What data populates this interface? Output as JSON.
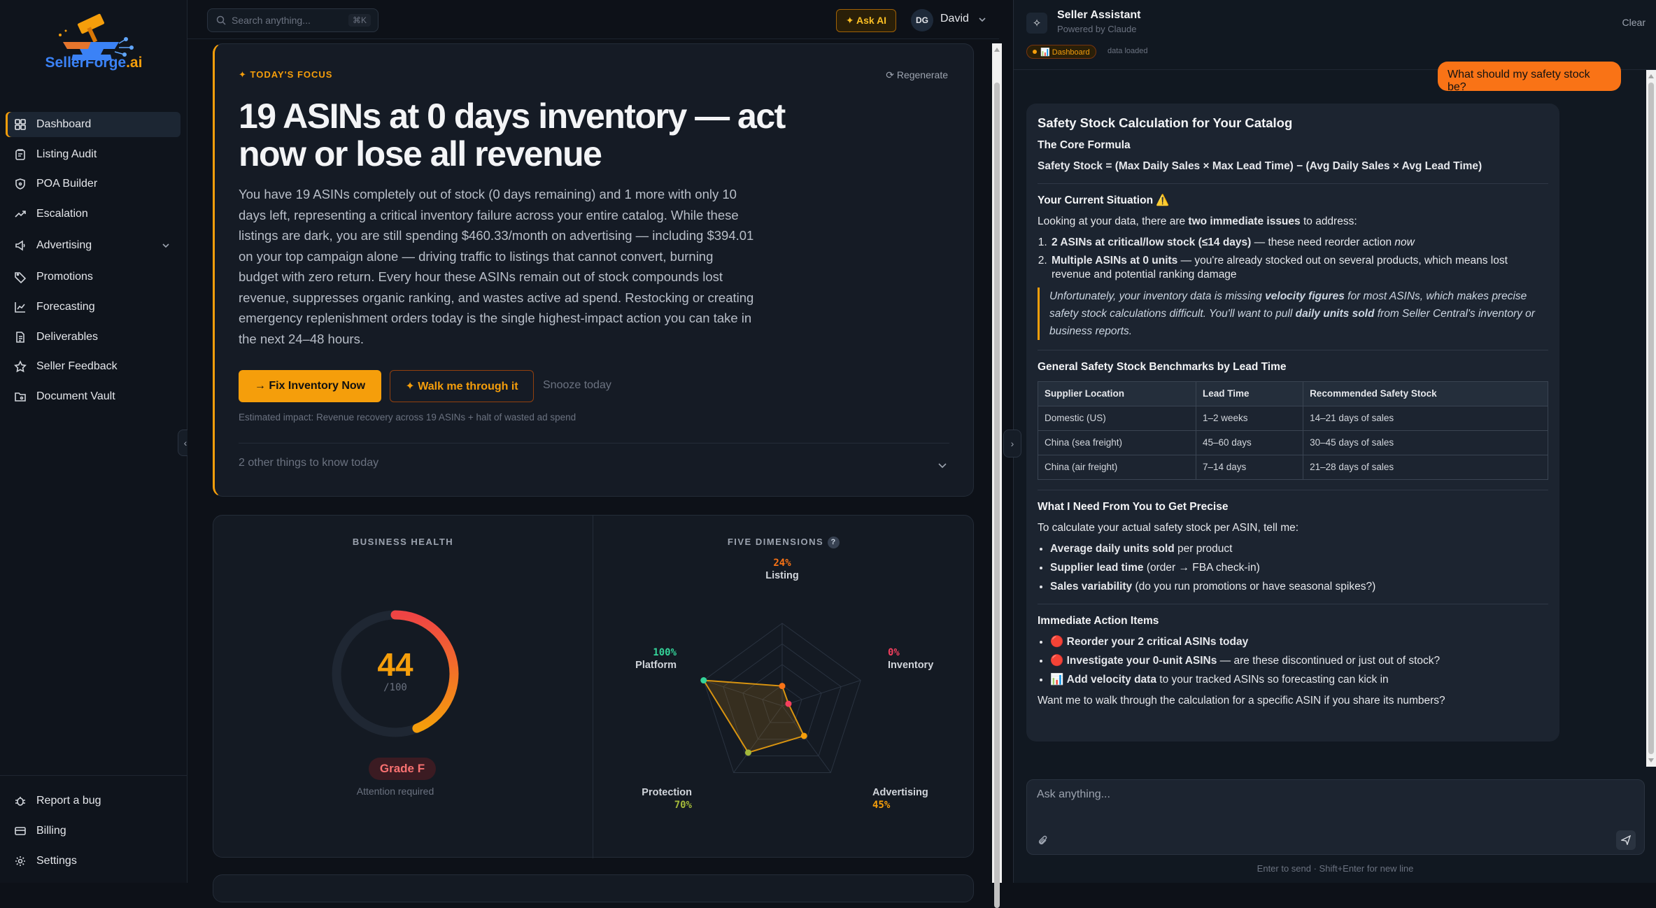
{
  "brand": {
    "name_primary": "SellerForge",
    "name_suffix": ".ai"
  },
  "sidebar": {
    "items": [
      {
        "label": "Dashboard",
        "icon": "dashboard-icon",
        "active": true
      },
      {
        "label": "Listing Audit",
        "icon": "clipboard-icon"
      },
      {
        "label": "POA Builder",
        "icon": "shield-icon"
      },
      {
        "label": "Escalation",
        "icon": "trending-up-icon"
      },
      {
        "label": "Advertising",
        "icon": "megaphone-icon",
        "expandable": true
      },
      {
        "label": "Promotions",
        "icon": "tag-icon"
      },
      {
        "label": "Forecasting",
        "icon": "line-chart-icon"
      },
      {
        "label": "Deliverables",
        "icon": "document-icon"
      },
      {
        "label": "Seller Feedback",
        "icon": "star-icon"
      },
      {
        "label": "Document Vault",
        "icon": "folder-icon"
      }
    ],
    "footer": [
      {
        "label": "Report a bug",
        "icon": "bug-icon"
      },
      {
        "label": "Billing",
        "icon": "credit-card-icon"
      },
      {
        "label": "Settings",
        "icon": "gear-icon"
      }
    ]
  },
  "topbar": {
    "search_placeholder": "Search anything...",
    "search_shortcut": "⌘K",
    "ask_ai": "✦ Ask AI",
    "user_initials": "DG",
    "user_name": "David"
  },
  "focus": {
    "tag": "✦ TODAY'S FOCUS",
    "regenerate": "Regenerate",
    "title": "19 ASINs at 0 days inventory — act now or lose all revenue",
    "body": "You have 19 ASINs completely out of stock (0 days remaining) and 1 more with only 10 days left, representing a critical inventory failure across your entire catalog. While these listings are dark, you are still spending $460.33/month on advertising — including $394.01 on your top campaign alone — driving traffic to listings that cannot convert, burning budget with zero return. Every hour these ASINs remain out of stock compounds lost revenue, suppresses organic ranking, and wastes active ad spend. Restocking or creating emergency replenishment orders today is the single highest-impact action you can take in the next 24–48 hours.",
    "primary_action": "→ Fix Inventory Now",
    "secondary_action": "✦ Walk me through it",
    "snooze": "Snooze today",
    "impact": "Estimated impact: Revenue recovery across 19 ASINs + halt of wasted ad spend",
    "others": "2 other things to know today"
  },
  "health": {
    "label": "BUSINESS HEALTH",
    "score": 44,
    "score_max": "/100",
    "score_display": "44",
    "grade": "Grade F",
    "status": "Attention required"
  },
  "dimensions": {
    "label": "FIVE DIMENSIONS",
    "help": "?",
    "items": [
      {
        "name": "Listing",
        "value": 24,
        "display": "24%",
        "color": "#f97316"
      },
      {
        "name": "Inventory",
        "value": 0,
        "display": "0%",
        "color": "#f43f5e"
      },
      {
        "name": "Advertising",
        "value": 45,
        "display": "45%",
        "color": "#f59e0b"
      },
      {
        "name": "Protection",
        "value": 70,
        "display": "70%",
        "color": "#a3b83a"
      },
      {
        "name": "Platform",
        "value": 100,
        "display": "100%",
        "color": "#34d399"
      }
    ]
  },
  "assistant": {
    "title": "Seller Assistant",
    "subtitle": "Powered by Claude",
    "clear": "Clear",
    "chip": "📊 Dashboard",
    "chip_status": "data loaded",
    "user_message": "What should my safety stock be?",
    "reply": {
      "title": "Safety Stock Calculation for Your Catalog",
      "formula_heading": "The Core Formula",
      "formula": "Safety Stock = (Max Daily Sales × Max Lead Time) − (Avg Daily Sales × Avg Lead Time)",
      "situation_heading": "Your Current Situation ⚠️",
      "situation_intro_a": "Looking at your data, there are ",
      "situation_intro_b": "two immediate issues",
      "situation_intro_c": " to address:",
      "issue1_bold": "2 ASINs at critical/low stock (≤14 days)",
      "issue1_rest": " — these need reorder action ",
      "issue1_em": "now",
      "issue2_bold": "Multiple ASINs at 0 units",
      "issue2_rest": " — you're already stocked out on several products, which means lost revenue and potential ranking damage",
      "quote_a": "Unfortunately, your inventory data is missing ",
      "quote_b": "velocity figures",
      "quote_c": " for most ASINs, which makes precise safety stock calculations difficult. You'll want to pull ",
      "quote_d": "daily units sold",
      "quote_e": " from Seller Central's inventory or business reports.",
      "bench_heading": "General Safety Stock Benchmarks by Lead Time",
      "table_headers": [
        "Supplier Location",
        "Lead Time",
        "Recommended Safety Stock"
      ],
      "table_rows": [
        [
          "Domestic (US)",
          "1–2 weeks",
          "14–21 days of sales"
        ],
        [
          "China (sea freight)",
          "45–60 days",
          "30–45 days of sales"
        ],
        [
          "China (air freight)",
          "7–14 days",
          "21–28 days of sales"
        ]
      ],
      "need_heading": "What I Need From You to Get Precise",
      "need_intro": "To calculate your actual safety stock per ASIN, tell me:",
      "need1_bold": "Average daily units sold",
      "need1_rest": " per product",
      "need2_bold": "Supplier lead time",
      "need2_rest": " (order → FBA check-in)",
      "need3_bold": "Sales variability",
      "need3_rest": " (do you run promotions or have seasonal spikes?)",
      "action_heading": "Immediate Action Items",
      "action1_icon": "🔴",
      "action1_bold": "Reorder your 2 critical ASINs today",
      "action2_icon": "🔴",
      "action2_bold": "Investigate your 0-unit ASINs",
      "action2_rest": " — are these discontinued or just out of stock?",
      "action3_icon": "📊",
      "action3_bold": "Add velocity data",
      "action3_rest": " to your tracked ASINs so forecasting can kick in",
      "closing": "Want me to walk through the calculation for a specific ASIN if you share its numbers?"
    },
    "input_placeholder": "Ask anything...",
    "hint": "Enter to send · Shift+Enter for new line"
  }
}
